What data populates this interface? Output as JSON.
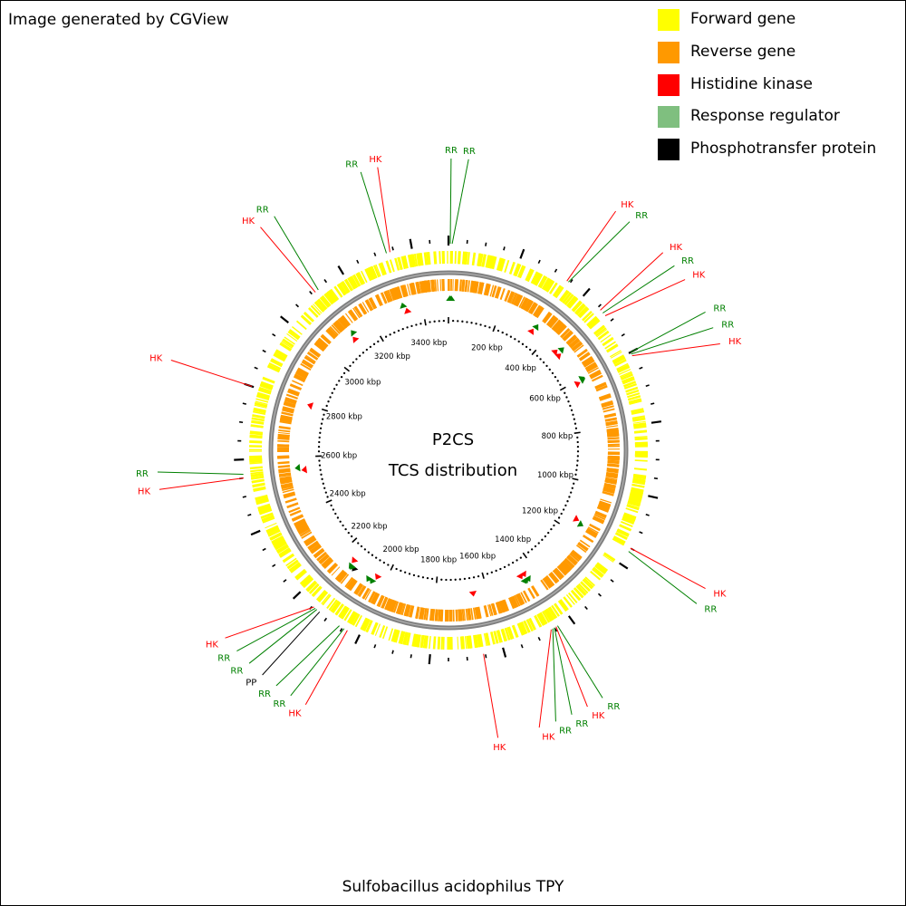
{
  "header": {
    "credit": "Image generated by CGView"
  },
  "footer": {
    "organism": "Sulfobacillus acidophilus TPY"
  },
  "legend": {
    "items": [
      {
        "label": "Forward gene",
        "color": "#ffff00"
      },
      {
        "label": "Reverse gene",
        "color": "#ff9900"
      },
      {
        "label": "Histidine kinase",
        "color": "#ff0000"
      },
      {
        "label": "Response regulator",
        "color": "#7fbf7f"
      },
      {
        "label": "Phosphotransfer protein",
        "color": "#000000"
      }
    ]
  },
  "map": {
    "center_title": "P2CS",
    "center_subtitle": "TCS distribution",
    "genome_length_kbp": 3500,
    "ruler_labels": [
      "200 kbp",
      "400 kbp",
      "600 kbp",
      "800 kbp",
      "1000 kbp",
      "1200 kbp",
      "1400 kbp",
      "1600 kbp",
      "1800 kbp",
      "2000 kbp",
      "2200 kbp",
      "2400 kbp",
      "2600 kbp",
      "2800 kbp",
      "3000 kbp",
      "3200 kbp",
      "3400 kbp"
    ],
    "ruler_positions_kbp": [
      200,
      400,
      600,
      800,
      1000,
      1200,
      1400,
      1600,
      1800,
      2000,
      2200,
      2400,
      2600,
      2800,
      3000,
      3200,
      3400
    ],
    "backbone_color": "#808080",
    "features": [
      {
        "label": "RR",
        "type": "rr",
        "pos_kbp": 5
      },
      {
        "label": "RR",
        "type": "rr",
        "pos_kbp": 10
      },
      {
        "label": "HK",
        "type": "hk",
        "pos_kbp": 340
      },
      {
        "label": "RR",
        "type": "rr",
        "pos_kbp": 345
      },
      {
        "label": "HK",
        "type": "hk",
        "pos_kbp": 460
      },
      {
        "label": "RR",
        "type": "rr",
        "pos_kbp": 470
      },
      {
        "label": "HK",
        "type": "hk",
        "pos_kbp": 480
      },
      {
        "label": "RR",
        "type": "rr",
        "pos_kbp": 600
      },
      {
        "label": "RR",
        "type": "rr",
        "pos_kbp": 605
      },
      {
        "label": "HK",
        "type": "hk",
        "pos_kbp": 610
      },
      {
        "label": "HK",
        "type": "hk",
        "pos_kbp": 1150
      },
      {
        "label": "RR",
        "type": "rr",
        "pos_kbp": 1160
      },
      {
        "label": "RR",
        "type": "rr",
        "pos_kbp": 1440
      },
      {
        "label": "HK",
        "type": "hk",
        "pos_kbp": 1445
      },
      {
        "label": "RR",
        "type": "rr",
        "pos_kbp": 1450
      },
      {
        "label": "RR",
        "type": "rr",
        "pos_kbp": 1455
      },
      {
        "label": "HK",
        "type": "hk",
        "pos_kbp": 1460
      },
      {
        "label": "HK",
        "type": "hk",
        "pos_kbp": 1655
      },
      {
        "label": "HK",
        "type": "hk",
        "pos_kbp": 2035
      },
      {
        "label": "RR",
        "type": "rr",
        "pos_kbp": 2045
      },
      {
        "label": "RR",
        "type": "rr",
        "pos_kbp": 2060
      },
      {
        "label": "PP",
        "type": "pp",
        "pos_kbp": 2125
      },
      {
        "label": "RR",
        "type": "rr",
        "pos_kbp": 2135
      },
      {
        "label": "RR",
        "type": "rr",
        "pos_kbp": 2140
      },
      {
        "label": "HK",
        "type": "hk",
        "pos_kbp": 2145
      },
      {
        "label": "HK",
        "type": "hk",
        "pos_kbp": 2550
      },
      {
        "label": "RR",
        "type": "rr",
        "pos_kbp": 2560
      },
      {
        "label": "HK",
        "type": "hk",
        "pos_kbp": 2800
      },
      {
        "label": "HK",
        "type": "hk",
        "pos_kbp": 3110
      },
      {
        "label": "RR",
        "type": "rr",
        "pos_kbp": 3120
      },
      {
        "label": "RR",
        "type": "rr",
        "pos_kbp": 3330
      },
      {
        "label": "HK",
        "type": "hk",
        "pos_kbp": 3340
      }
    ]
  }
}
